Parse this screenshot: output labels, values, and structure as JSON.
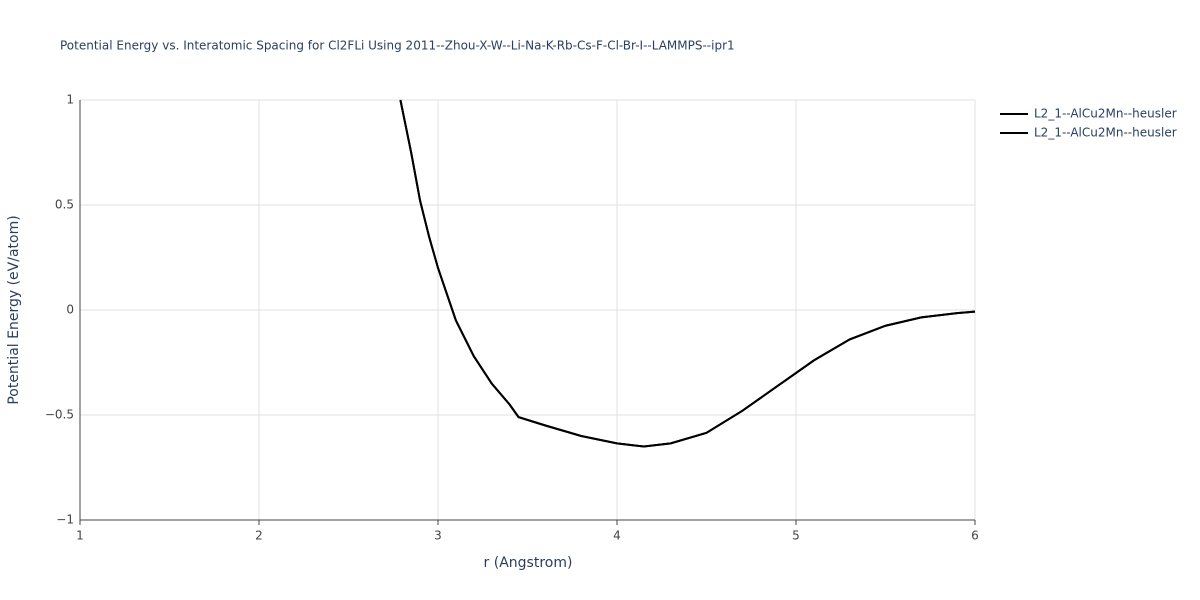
{
  "chart_data": {
    "type": "line",
    "title": "Potential Energy vs. Interatomic Spacing for Cl2FLi Using 2011--Zhou-X-W--Li-Na-K-Rb-Cs-F-Cl-Br-I--LAMMPS--ipr1",
    "x_label": "r (Angstrom)",
    "y_label": "Potential Energy (eV/atom)",
    "x": [
      2.79,
      2.85,
      2.9,
      2.95,
      3.0,
      3.1,
      3.2,
      3.3,
      3.4,
      3.45,
      3.6,
      3.8,
      4.0,
      4.15,
      4.3,
      4.5,
      4.7,
      4.9,
      5.1,
      5.3,
      5.5,
      5.7,
      5.9,
      6.0
    ],
    "series": [
      {
        "name": "L2_1--AlCu2Mn--heusler",
        "color": "#000000",
        "values": [
          1.0,
          0.75,
          0.52,
          0.35,
          0.2,
          -0.05,
          -0.22,
          -0.35,
          -0.45,
          -0.51,
          -0.55,
          -0.6,
          -0.635,
          -0.65,
          -0.635,
          -0.585,
          -0.48,
          -0.36,
          -0.24,
          -0.14,
          -0.075,
          -0.035,
          -0.015,
          -0.008
        ]
      },
      {
        "name": "L2_1--AlCu2Mn--heusler",
        "color": "#000000",
        "values": [
          1.0,
          0.75,
          0.52,
          0.35,
          0.2,
          -0.05,
          -0.22,
          -0.35,
          -0.45,
          -0.51,
          -0.55,
          -0.6,
          -0.635,
          -0.65,
          -0.635,
          -0.585,
          -0.48,
          -0.36,
          -0.24,
          -0.14,
          -0.075,
          -0.035,
          -0.015,
          -0.008
        ]
      }
    ],
    "xlim": [
      1,
      6
    ],
    "ylim": [
      -1,
      1
    ],
    "xticks": [
      1,
      2,
      3,
      4,
      5,
      6
    ],
    "yticks": [
      {
        "value": -1,
        "label": "−1"
      },
      {
        "value": -0.5,
        "label": "−0.5"
      },
      0,
      0.5,
      1
    ],
    "grid": true,
    "legend": "top-right"
  }
}
